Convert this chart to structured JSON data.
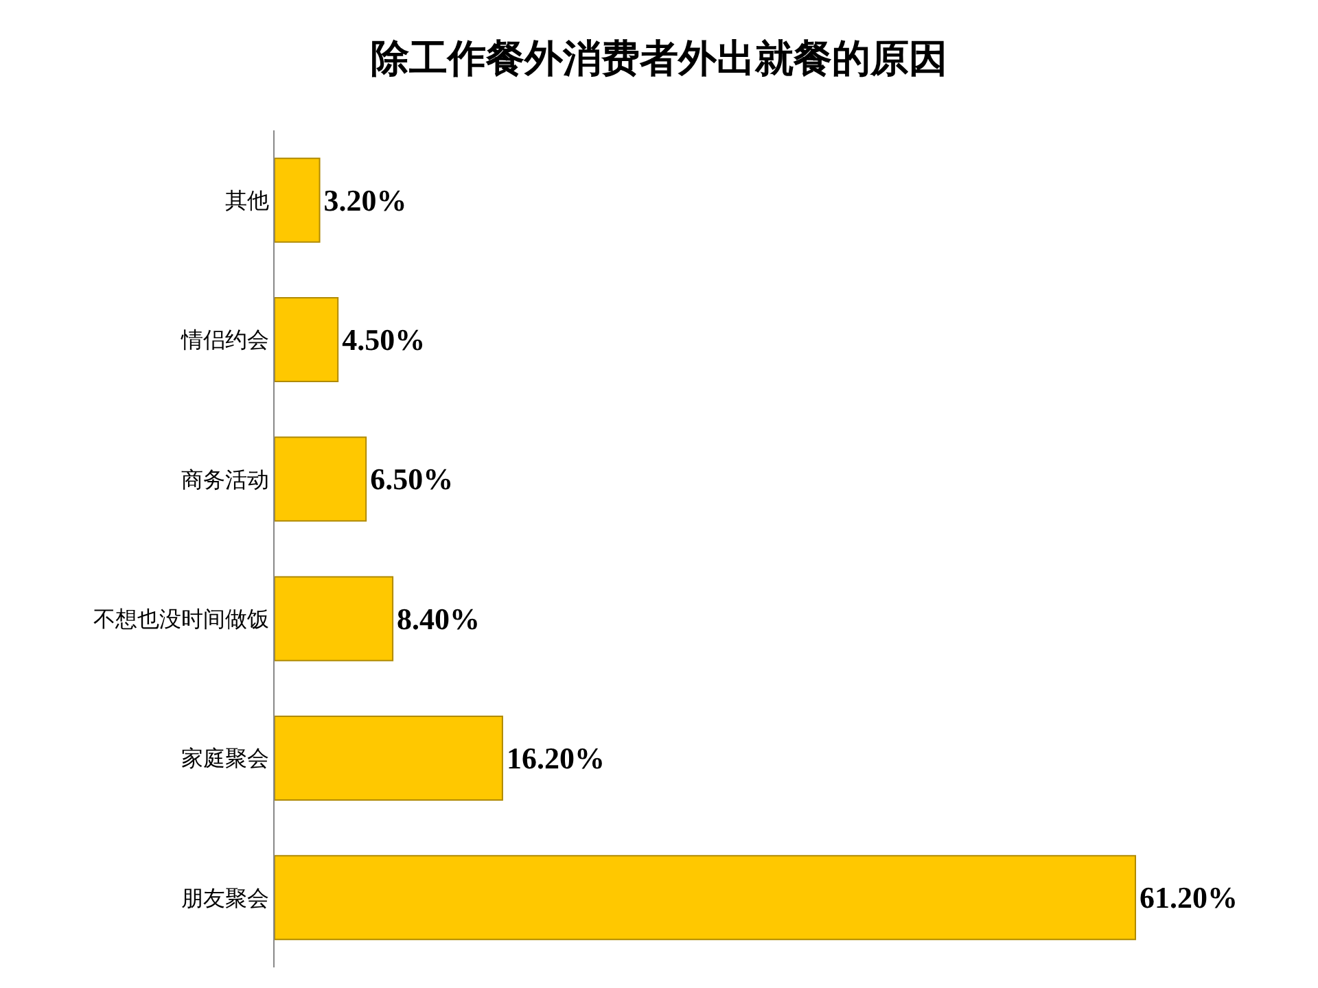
{
  "chart_data": {
    "type": "bar",
    "orientation": "horizontal",
    "title": "除工作餐外消费者外出就餐的原因",
    "categories": [
      "其他",
      "情侣约会",
      "商务活动",
      "不想也没时间做饭",
      "家庭聚会",
      "朋友聚会"
    ],
    "values": [
      3.2,
      4.5,
      6.5,
      8.4,
      16.2,
      61.2
    ],
    "value_labels": [
      "3.20%",
      "4.50%",
      "6.50%",
      "8.40%",
      "16.20%",
      "61.20%"
    ],
    "color": "#ffc800",
    "tick_labels": "y"
  }
}
